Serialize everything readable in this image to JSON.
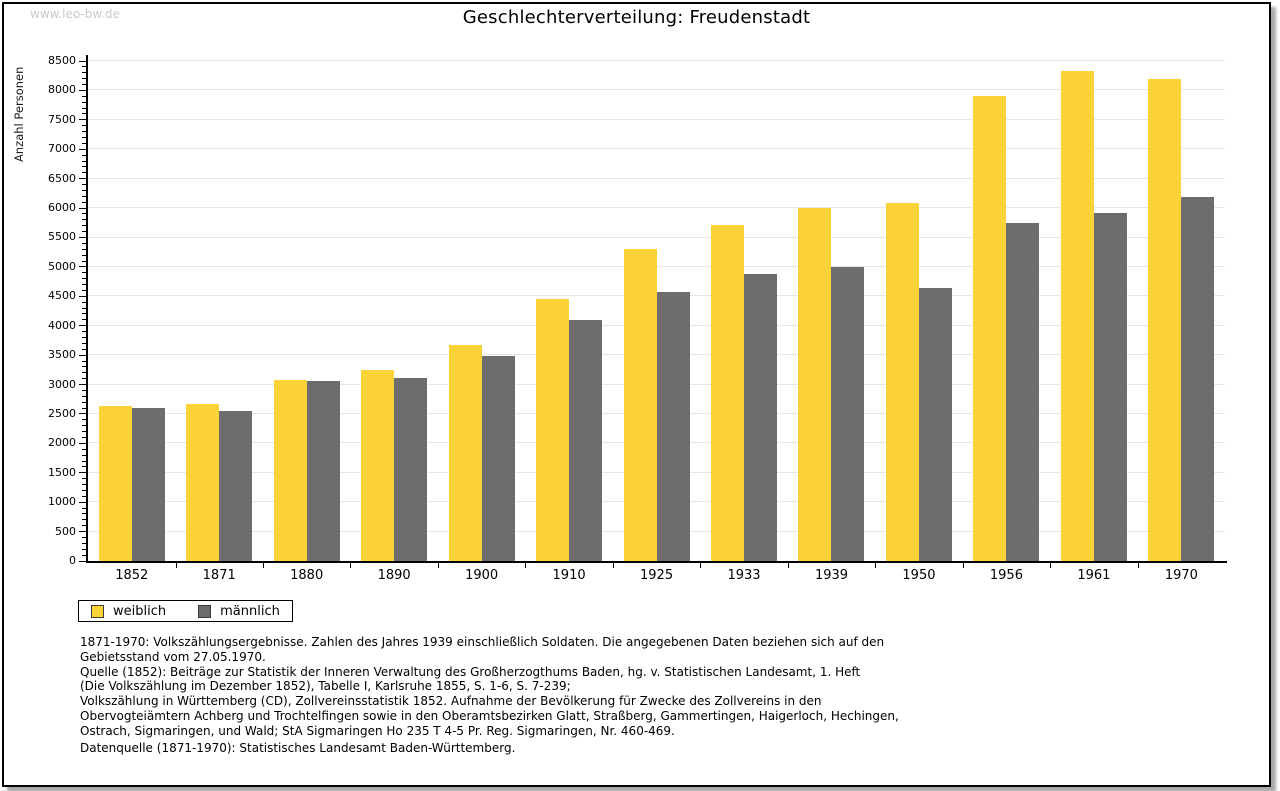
{
  "page": {
    "watermark": "www.leo-bw.de"
  },
  "header": {
    "title": "Geschlechterverteilung: Freudenstadt"
  },
  "chart_data": {
    "type": "bar",
    "title": "Geschlechterverteilung: Freudenstadt",
    "xlabel": "",
    "ylabel": "Anzahl Personen",
    "categories": [
      "1852",
      "1871",
      "1880",
      "1890",
      "1900",
      "1910",
      "1925",
      "1933",
      "1939",
      "1950",
      "1956",
      "1961",
      "1970"
    ],
    "series": [
      {
        "name": "weiblich",
        "color": "#FCD337",
        "values": [
          2640,
          2670,
          3080,
          3250,
          3670,
          4460,
          5310,
          5720,
          6010,
          6080,
          7900,
          8330,
          8200
        ]
      },
      {
        "name": "männlich",
        "color": "#6D6D6D",
        "values": [
          2600,
          2550,
          3060,
          3110,
          3490,
          4100,
          4580,
          4880,
          5000,
          4640,
          5740,
          5920,
          6190
        ]
      }
    ],
    "ylim": [
      0,
      8500
    ],
    "ytick_step": 500,
    "yminor_step": 100,
    "grid": true,
    "gridline_color": "#E6E6E6",
    "legend_position": "bottom-left"
  },
  "legend": {
    "items": [
      {
        "label": "weiblich",
        "color": "#FCD337"
      },
      {
        "label": "männlich",
        "color": "#6D6D6D"
      }
    ]
  },
  "notes": {
    "lines": [
      "1871-1970: Volkszählungsergebnisse. Zahlen des Jahres 1939 einschließlich Soldaten. Die angegebenen Daten beziehen sich auf den",
      "Gebietsstand vom 27.05.1970.",
      "Quelle (1852): Beiträge zur Statistik der Inneren Verwaltung des Großherzogthums Baden, hg. v. Statistischen Landesamt, 1. Heft",
      "(Die Volkszählung im Dezember 1852), Tabelle I, Karlsruhe 1855, S. 1-6, S. 7-239;",
      "Volkszählung in Württemberg (CD), Zollvereinsstatistik 1852. Aufnahme der Bevölkerung für Zwecke des Zollvereins in den",
      "Obervogteiämtern Achberg und Trochtelfingen sowie in den Oberamtsbezirken Glatt, Straßberg, Gammertingen, Haigerloch, Hechingen,",
      "Ostrach, Sigmaringen, und Wald; StA Sigmaringen Ho 235 T 4-5 Pr. Reg. Sigmaringen, Nr. 460-469."
    ],
    "datasource": "Datenquelle (1871-1970): Statistisches Landesamt Baden-Württemberg."
  }
}
